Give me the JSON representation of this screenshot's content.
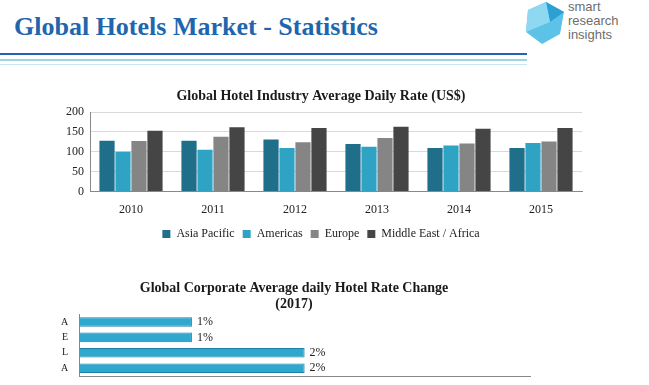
{
  "header": {
    "title": "Global Hotels Market - Statistics",
    "logo": "smart research insights"
  },
  "chart_data": [
    {
      "type": "bar",
      "title": "Global Hotel Industry Average Daily Rate (US$)",
      "categories": [
        "2010",
        "2011",
        "2012",
        "2013",
        "2014",
        "2015"
      ],
      "series": [
        {
          "name": "Asia Pacific",
          "color": "#1f6f8b",
          "values": [
            128,
            128,
            131,
            120,
            110,
            110
          ]
        },
        {
          "name": "Americas",
          "color": "#2fa3c4",
          "values": [
            100,
            105,
            110,
            113,
            116,
            122
          ]
        },
        {
          "name": "Europe",
          "color": "#858585",
          "values": [
            127,
            138,
            124,
            135,
            121,
            126
          ]
        },
        {
          "name": "Middle East / Africa",
          "color": "#454545",
          "values": [
            153,
            162,
            160,
            163,
            158,
            160
          ]
        }
      ],
      "ylim": [
        0,
        200
      ],
      "yticks": [
        0,
        50,
        100,
        150,
        200
      ],
      "grid": true,
      "legend": "bottom"
    },
    {
      "type": "bar",
      "title": [
        "Global Corporate Average daily Hotel Rate Change",
        "(2017)"
      ],
      "orientation": "horizontal",
      "categories": [
        "A",
        "E",
        "L",
        "A"
      ],
      "values": [
        1,
        1,
        2,
        2
      ],
      "value_labels": [
        "1%",
        "1%",
        "2%",
        "2%"
      ],
      "color": "#2ea8cf",
      "data_labels": true,
      "tick_labels": "y",
      "grid": false,
      "xlim": [
        0,
        4
      ]
    }
  ]
}
